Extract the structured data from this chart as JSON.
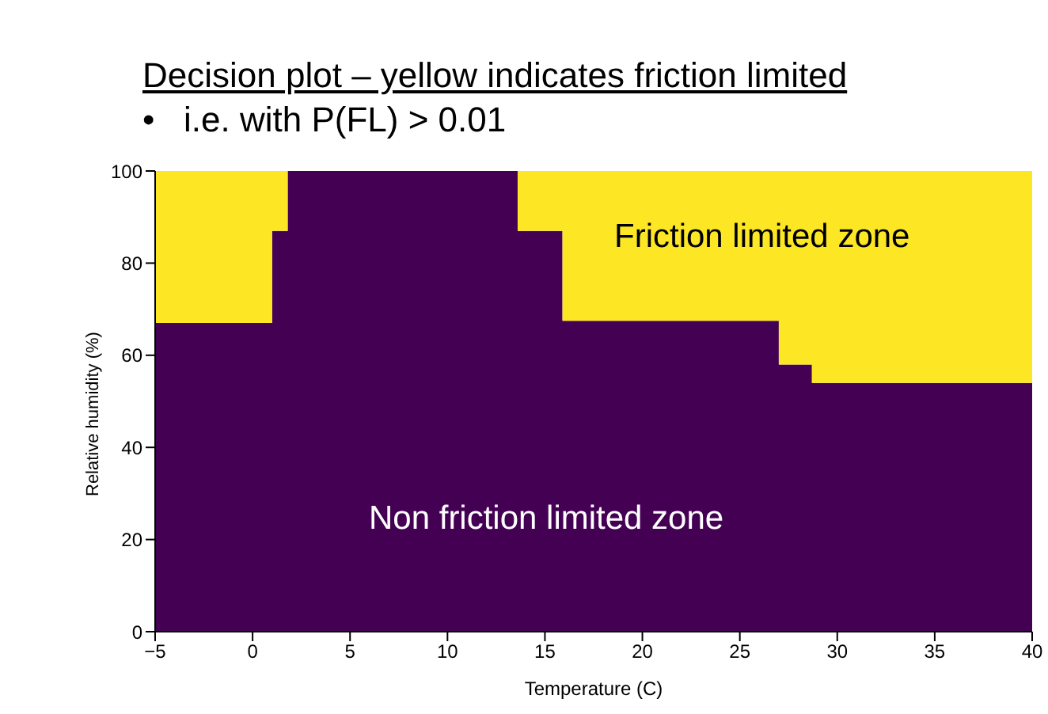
{
  "chart_data": {
    "type": "area",
    "title": "Decision plot – yellow indicates friction limited",
    "subtitle": "•   i.e. with P(FL) > 0.01",
    "xlabel": "Temperature (C)",
    "ylabel": "Relative humidity (%)",
    "x": [
      -5,
      1,
      1,
      1.8,
      1.8,
      13.6,
      13.6,
      15.9,
      15.9,
      27,
      27,
      28.7,
      28.7,
      40
    ],
    "series": [
      {
        "color": "#440154",
        "values": [
          67,
          67,
          87,
          87,
          100,
          100,
          87,
          87,
          67.5,
          67.5,
          58,
          58,
          54,
          54
        ]
      },
      {
        "color": "#fde725",
        "values": [
          33,
          33,
          13,
          13,
          0,
          0,
          13,
          13,
          32.5,
          32.5,
          42,
          42,
          46,
          46
        ]
      }
    ],
    "stacked": true,
    "xlim": [
      -5,
      40
    ],
    "xticks": [
      {
        "value": -5,
        "label": "−5"
      },
      0,
      5,
      10,
      15,
      20,
      25,
      30,
      35,
      40
    ],
    "ylim": [
      0,
      100
    ],
    "yticks": [
      0,
      20,
      40,
      60,
      80,
      100
    ],
    "annotations": [
      "Friction limited zone",
      "Non friction limited zone"
    ]
  }
}
